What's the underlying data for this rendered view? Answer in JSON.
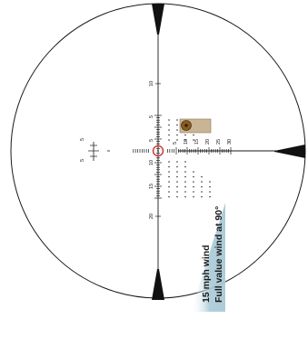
{
  "annotation": {
    "line1": "15 mph wind",
    "line2": "Full value wind at 90°"
  },
  "reticle": {
    "vertical_labels": [
      "10",
      "5",
      "5",
      "10",
      "15",
      "20"
    ],
    "horizontal_labels": [
      "5",
      "10",
      "15",
      "20",
      "25",
      "30"
    ],
    "left_marker_labels": [
      "5",
      "5"
    ],
    "colors": {
      "line": "#1a1a1a",
      "center_ring": "#d23a3a",
      "target_box": "#c9b594",
      "target": "#8a5a22",
      "banner": "#a9c9d6"
    }
  }
}
